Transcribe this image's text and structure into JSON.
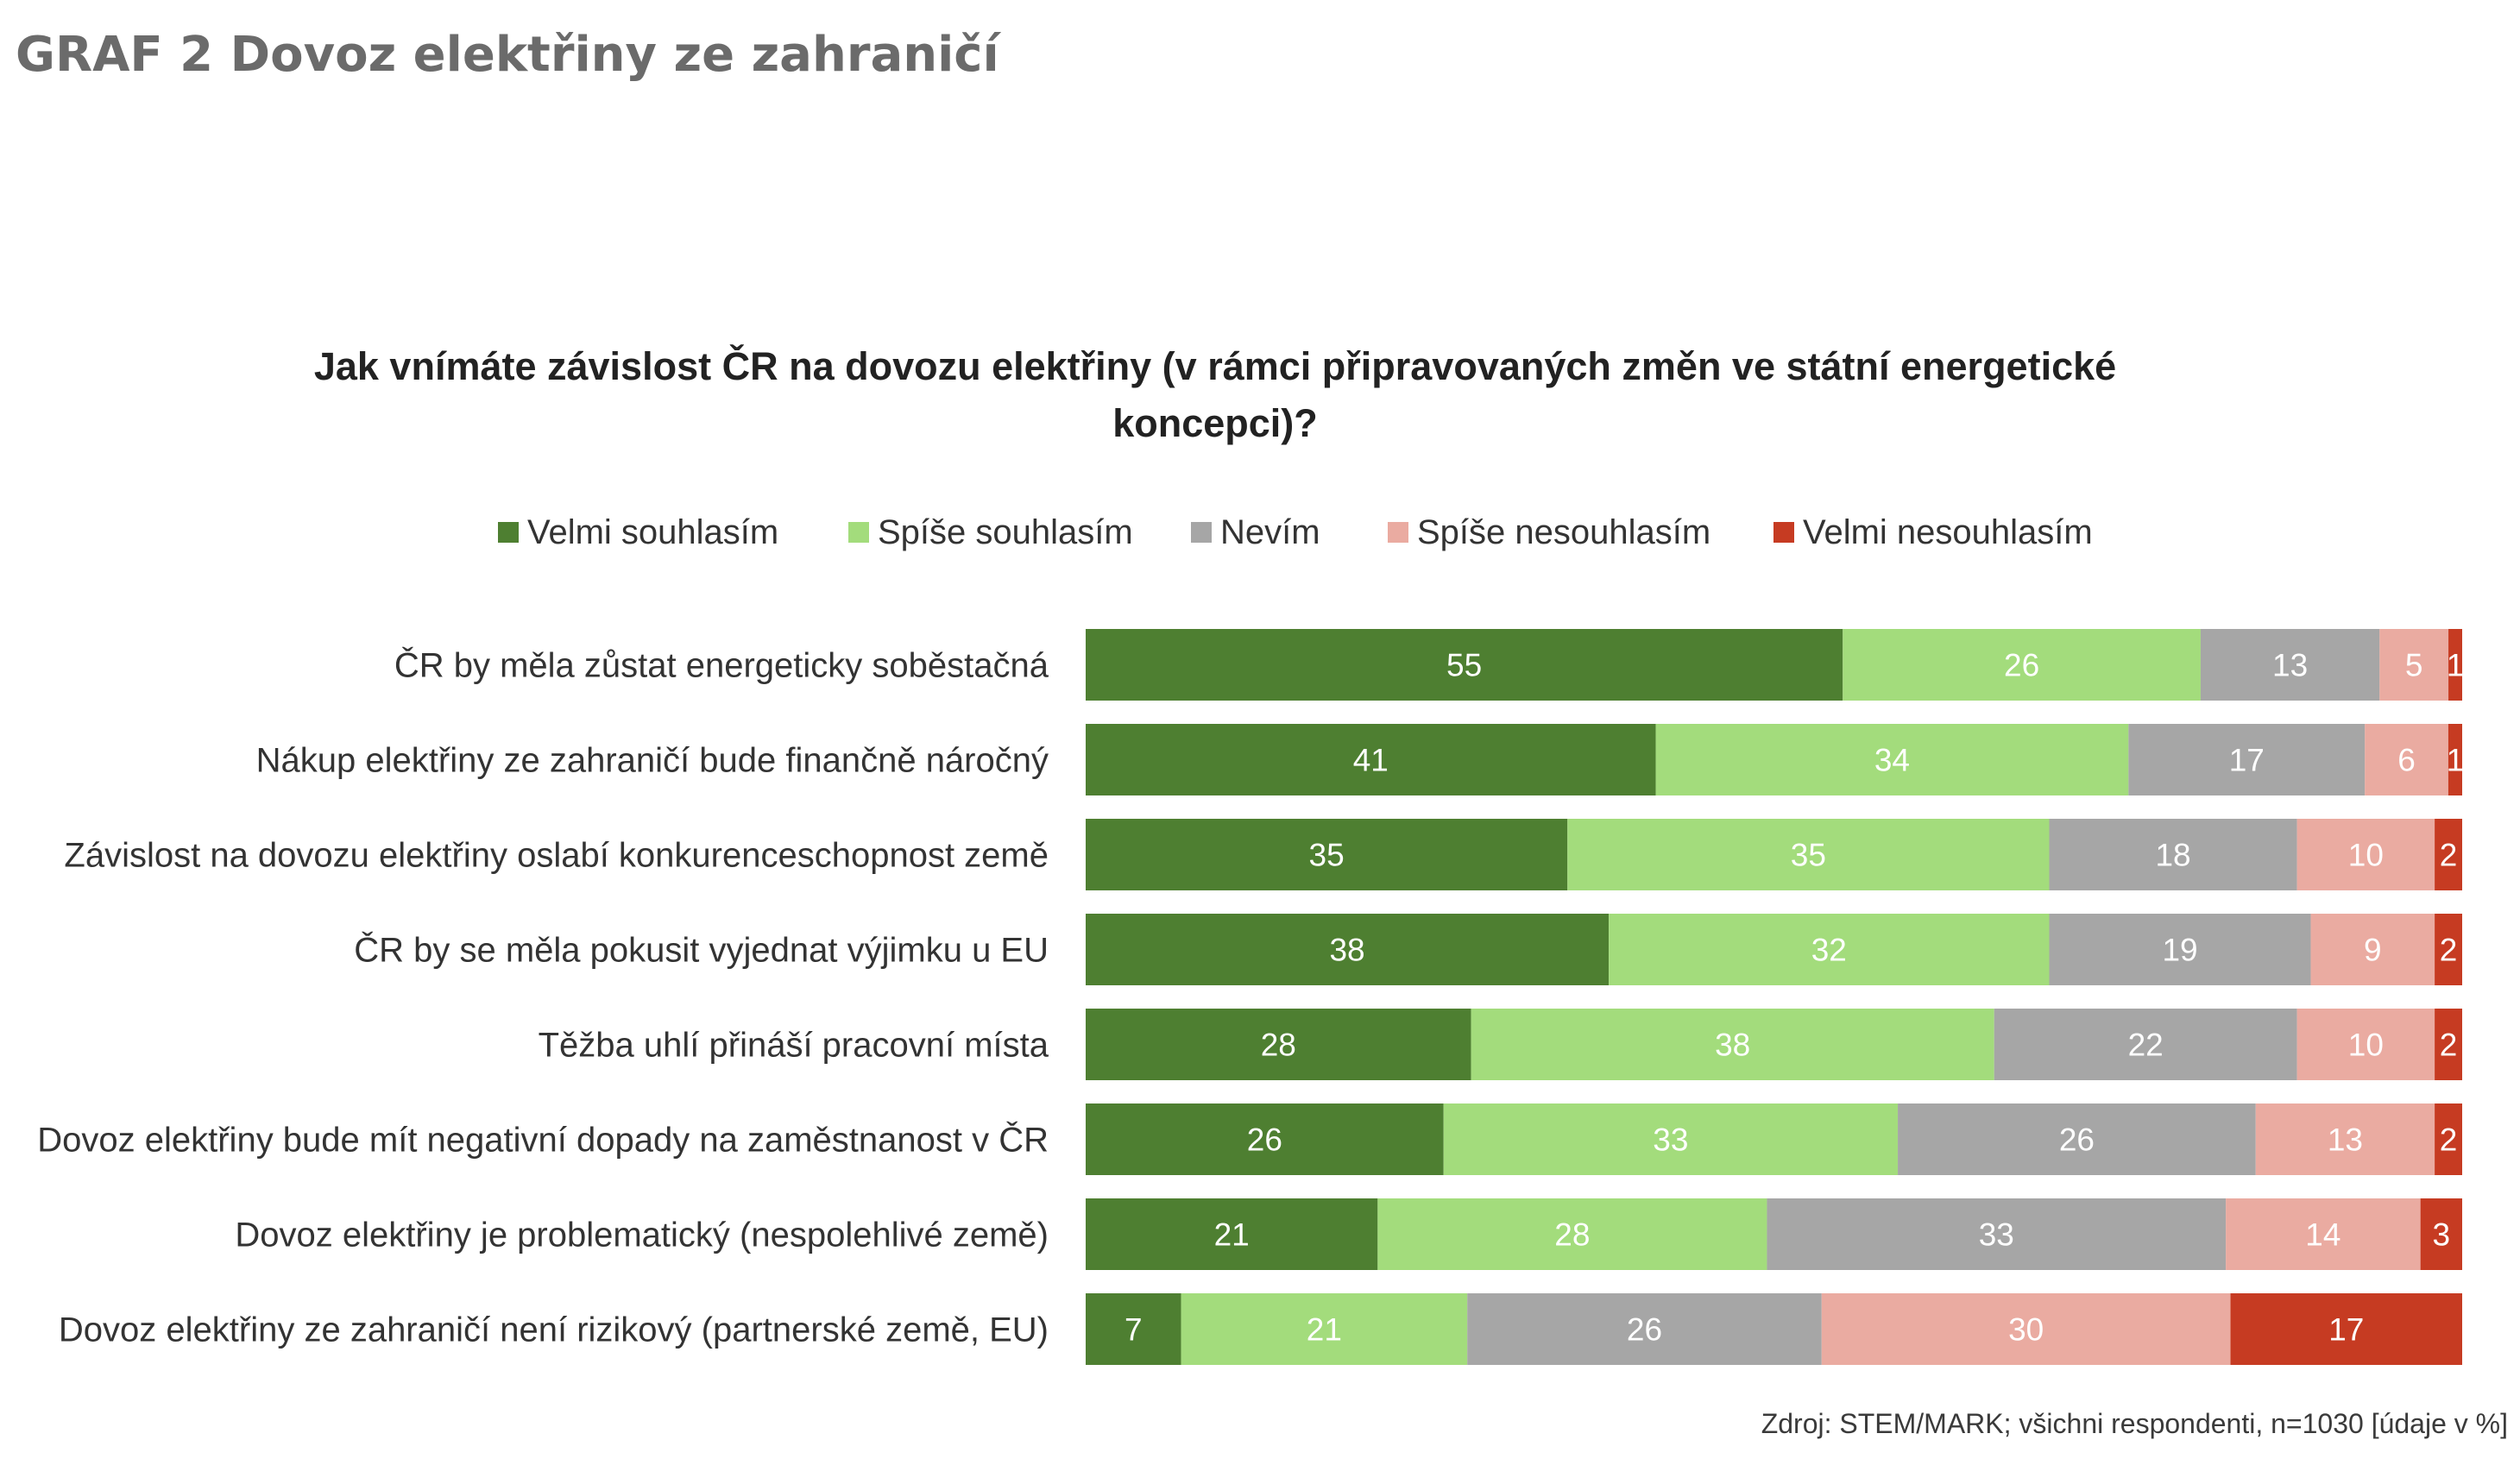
{
  "page_title": "GRAF 2 Dovoz elektřiny ze zahraničí",
  "chart_data": {
    "type": "bar",
    "orientation": "horizontal",
    "stacked": true,
    "title": "Jak vnímáte závislost ČR na dovozu elektřiny (v rámci připravovaných změn ve státní energetické koncepci)?",
    "title_lines": [
      "Jak vnímáte závislost ČR na dovozu elektřiny (v rámci připravovaných změn ve státní energetické",
      "koncepci)?"
    ],
    "legend_position": "top",
    "grid": false,
    "categories": [
      "ČR by měla zůstat energeticky soběstačná",
      "Nákup elektřiny ze zahraničí bude finančně náročný",
      "Závislost na dovozu elektřiny oslabí konkurenceschopnost země",
      "ČR by se měla pokusit vyjednat výjimku u EU",
      "Těžba uhlí přináší pracovní místa",
      "Dovoz elektřiny bude mít negativní dopady na zaměstnanost v ČR",
      "Dovoz elektřiny je problematický (nespolehlivé země)",
      "Dovoz elektřiny ze zahraničí není rizikový (partnerské země, EU)"
    ],
    "series": [
      {
        "name": "Velmi souhlasím",
        "color": "#4e7f31",
        "label_color": "#ffffff",
        "values": [
          55,
          41,
          35,
          38,
          28,
          26,
          21,
          7
        ]
      },
      {
        "name": "Spíše souhlasím",
        "color": "#a3dc7c",
        "label_color": "#ffffff",
        "values": [
          26,
          34,
          35,
          32,
          38,
          33,
          28,
          21
        ]
      },
      {
        "name": "Nevím",
        "color": "#a6a6a6",
        "label_color": "#ffffff",
        "values": [
          13,
          17,
          18,
          19,
          22,
          26,
          33,
          26
        ]
      },
      {
        "name": "Spíše nesouhlasím",
        "color": "#eaaba1",
        "label_color": "#ffffff",
        "values": [
          5,
          6,
          10,
          9,
          10,
          13,
          14,
          30
        ]
      },
      {
        "name": "Velmi nesouhlasím",
        "color": "#c63b22",
        "label_color": "#ffffff",
        "values": [
          1,
          1,
          2,
          2,
          2,
          2,
          3,
          17
        ]
      }
    ],
    "source": "Zdroj: STEM/MARK; všichni respondenti, n=1030 [údaje v %]"
  }
}
